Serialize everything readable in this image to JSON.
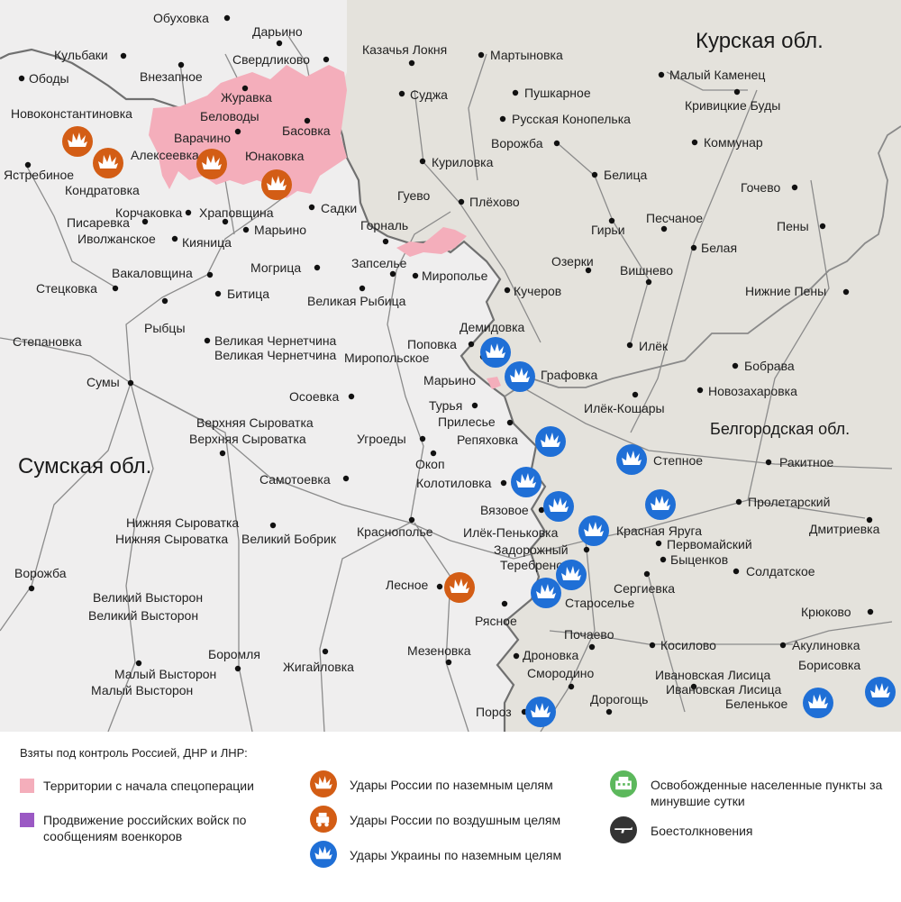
{
  "map": {
    "regions": {
      "kursk": "Курская обл.",
      "sumy": "Сумская обл.",
      "belgorod": "Белгородская обл."
    },
    "colors": {
      "background_ukraine": "#efeeee",
      "background_russia": "#e4e2dc",
      "controlled_territory": "#f4aebb",
      "russian_strike": "#d35d15",
      "ukrainian_strike": "#1f6fd6",
      "liberated": "#5cb85c",
      "clash": "#333333"
    },
    "places": [
      "Обуховка",
      "Дарьино",
      "Свердликово",
      "Казачья Локня",
      "Мартыновка",
      "Кульбаки",
      "Ободы",
      "Внезапное",
      "Журавка",
      "Беловоды",
      "Новоконстантиновка",
      "Суджа",
      "Пушкарное",
      "Малый Каменец",
      "Кривицкие Буды",
      "Русская Конопелька",
      "Басовка",
      "Варачино",
      "Алексеевка",
      "Юнаковка",
      "Ворожба",
      "Коммунар",
      "Ястребиное",
      "Кондратовка",
      "Куриловка",
      "Белица",
      "Гочево",
      "Гуево",
      "Плёхово",
      "Садки",
      "Корчаковка",
      "Храповщина",
      "Писаревка",
      "Иволжанское",
      "Кияница",
      "Марьино",
      "Горналь",
      "Гирьи",
      "Песчаное",
      "Пены",
      "Белая",
      "Запселье",
      "Могрица",
      "Мирополье",
      "Озерки",
      "Вишнево",
      "Вакаловщина",
      "Стецковка",
      "Битица",
      "Кучеров",
      "Нижние Пены",
      "Великая Рыбица",
      "Рыбцы",
      "Демидовка",
      "Степановка",
      "Великая Чернетчина",
      "Поповка",
      "Миропольское",
      "Илёк",
      "Бобрава",
      "Марьино",
      "Графовка",
      "Сумы",
      "Осоевка",
      "Новозахаровка",
      "Турья",
      "Илёк-Кошары",
      "Прилесье",
      "Верхняя Сыроватка",
      "Репяховка",
      "Белгородская обл.",
      "Угроеды",
      "Окоп",
      "Степное",
      "Ракитное",
      "Самотоевка",
      "Колотиловка",
      "Вязовое",
      "Пролетарский",
      "Краснополье",
      "Нижняя Сыроватка",
      "Илёк-Пеньковка",
      "Красная Яруга",
      "Дмитриевка",
      "Великий Бобрик",
      "Задорожный",
      "Первомайский",
      "Быценков",
      "Ворожба",
      "Теребрено",
      "Солдатское",
      "Лесное",
      "Сергиевка",
      "Великий Высторон",
      "Староселье",
      "Рясное",
      "Крюково",
      "Почаево",
      "Боромля",
      "Жигайловка",
      "Мезеновка",
      "Дроновка",
      "Косилово",
      "Акулиновка",
      "Борисовка",
      "Малый Высторон",
      "Смородино",
      "Ивановская Лисица",
      "Дорогощь",
      "Беленькое",
      "Пороз"
    ]
  },
  "legend": {
    "title": "Взяты под контроль Россией, ДНР и ЛНР:",
    "items": {
      "territory": "Территории с начала спецоперации",
      "advance": "Продвижение российских войск по сообщениям военкоров",
      "ru_ground": "Удары России по наземным целям",
      "ru_air": "Удары России по воздушным целям",
      "ua_ground": "Удары Украины по наземным целям",
      "liberated": "Освобожденные населенные пункты за минувшие сутки",
      "clashes": "Боестолкновения"
    },
    "colors": {
      "territory": "#f4aebb",
      "advance": "#9b59c4"
    }
  }
}
